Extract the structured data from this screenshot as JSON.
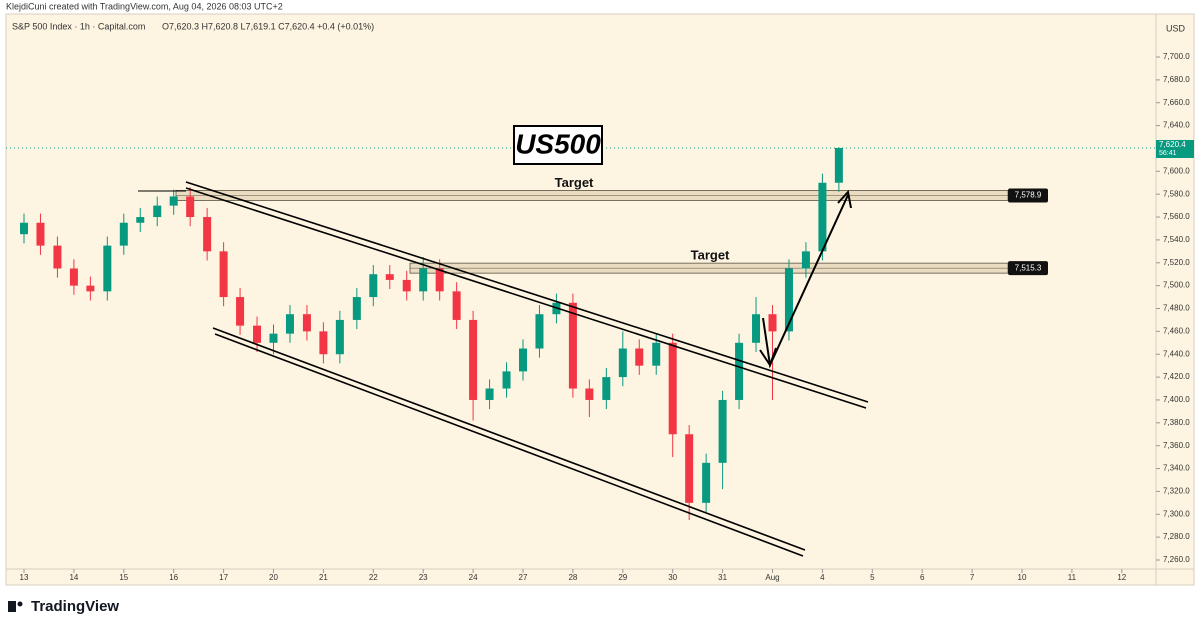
{
  "chart_data": {
    "type": "candlestick",
    "header": "KlejdiCuni created with TradingView.com, Aug 04, 2026 08:03 UTC+2",
    "subtitle": "S&P 500 Index · 1h · Capital.com",
    "ohlc_text": "O7,620.3 H7,620.8 L7,619.1 C7,620.4 +0.4 (+0.01%)",
    "title": "US500",
    "currency": "USD",
    "footer": "TradingView",
    "up_color": "#089981",
    "down_color": "#f23645",
    "last_price": 7620.4,
    "last_price_label": "7,620.4",
    "countdown": "56:41",
    "zones": [
      {
        "label": "Target",
        "value": 7578.9,
        "value_label": "7,578.9"
      },
      {
        "label": "Target",
        "value": 7515.3,
        "value_label": "7,515.3"
      }
    ],
    "xlim": [
      -0.3,
      22.3
    ],
    "xticks": [
      {
        "value": 0,
        "label": "13"
      },
      {
        "value": 1,
        "label": "14"
      },
      {
        "value": 2,
        "label": "15"
      },
      {
        "value": 3,
        "label": "16"
      },
      {
        "value": 4,
        "label": "17"
      },
      {
        "value": 5,
        "label": "20"
      },
      {
        "value": 6,
        "label": "21"
      },
      {
        "value": 7,
        "label": "22"
      },
      {
        "value": 8,
        "label": "23"
      },
      {
        "value": 9,
        "label": "24"
      },
      {
        "value": 10,
        "label": "27"
      },
      {
        "value": 11,
        "label": "28"
      },
      {
        "value": 12,
        "label": "29"
      },
      {
        "value": 13,
        "label": "30"
      },
      {
        "value": 14,
        "label": "31"
      },
      {
        "value": 15,
        "label": "Aug"
      },
      {
        "value": 16,
        "label": "4"
      },
      {
        "value": 17,
        "label": "5"
      },
      {
        "value": 18,
        "label": "6"
      },
      {
        "value": 19,
        "label": "7"
      },
      {
        "value": 20,
        "label": "10"
      },
      {
        "value": 21,
        "label": "11"
      },
      {
        "value": 22,
        "label": "12"
      }
    ],
    "ylim": [
      7240,
      7720
    ],
    "yticks": [
      {
        "value": 7260,
        "label": "7,260.0"
      },
      {
        "value": 7280,
        "label": "7,280.0"
      },
      {
        "value": 7300,
        "label": "7,300.0"
      },
      {
        "value": 7320,
        "label": "7,320.0"
      },
      {
        "value": 7340,
        "label": "7,340.0"
      },
      {
        "value": 7360,
        "label": "7,360.0"
      },
      {
        "value": 7380,
        "label": "7,380.0"
      },
      {
        "value": 7400,
        "label": "7,400.0"
      },
      {
        "value": 7420,
        "label": "7,420.0"
      },
      {
        "value": 7440,
        "label": "7,440.0"
      },
      {
        "value": 7460,
        "label": "7,460.0"
      },
      {
        "value": 7480,
        "label": "7,480.0"
      },
      {
        "value": 7500,
        "label": "7,500.0"
      },
      {
        "value": 7520,
        "label": "7,520.0"
      },
      {
        "value": 7540,
        "label": "7,540.0"
      },
      {
        "value": 7560,
        "label": "7,560.0"
      },
      {
        "value": 7580,
        "label": "7,580.0"
      },
      {
        "value": 7600,
        "label": "7,600.0"
      },
      {
        "value": 7620,
        "label": "7,620.0"
      },
      {
        "value": 7640,
        "label": "7,640.0"
      },
      {
        "value": 7660,
        "label": "7,660.0"
      },
      {
        "value": 7680,
        "label": "7,680.0"
      },
      {
        "value": 7700,
        "label": "7,700.0"
      }
    ],
    "x": [
      0,
      0.33,
      0.67,
      1,
      1.33,
      1.67,
      2,
      2.33,
      2.67,
      3,
      3.33,
      3.67,
      4,
      4.33,
      4.67,
      5,
      5.33,
      5.67,
      6,
      6.33,
      6.67,
      7,
      7.33,
      7.67,
      8,
      8.33,
      8.67,
      9,
      9.33,
      9.67,
      10,
      10.33,
      10.67,
      11,
      11.33,
      11.67,
      12,
      12.33,
      12.67,
      13,
      13.33,
      13.67,
      14,
      14.33,
      14.67,
      15,
      15.33,
      15.67,
      16,
      16.33
    ],
    "open": [
      7545,
      7555,
      7535,
      7515,
      7500,
      7495,
      7535,
      7555,
      7560,
      7570,
      7578,
      7560,
      7530,
      7490,
      7465,
      7450,
      7458,
      7475,
      7460,
      7440,
      7470,
      7490,
      7510,
      7505,
      7495,
      7515,
      7495,
      7470,
      7400,
      7410,
      7425,
      7445,
      7475,
      7485,
      7410,
      7400,
      7420,
      7445,
      7430,
      7450,
      7370,
      7310,
      7345,
      7400,
      7450,
      7475,
      7460,
      7515,
      7530,
      7590
    ],
    "high": [
      7563,
      7563,
      7543,
      7523,
      7508,
      7543,
      7563,
      7568,
      7578,
      7584,
      7586,
      7568,
      7538,
      7498,
      7473,
      7466,
      7483,
      7483,
      7468,
      7478,
      7498,
      7518,
      7518,
      7513,
      7525,
      7523,
      7503,
      7478,
      7418,
      7433,
      7453,
      7483,
      7493,
      7493,
      7418,
      7428,
      7460,
      7453,
      7458,
      7458,
      7378,
      7353,
      7408,
      7458,
      7490,
      7483,
      7523,
      7538,
      7598,
      7621
    ],
    "low": [
      7537,
      7527,
      7507,
      7492,
      7487,
      7487,
      7527,
      7547,
      7552,
      7562,
      7552,
      7522,
      7482,
      7457,
      7442,
      7440,
      7450,
      7452,
      7432,
      7432,
      7462,
      7482,
      7497,
      7487,
      7487,
      7487,
      7462,
      7382,
      7392,
      7402,
      7417,
      7437,
      7467,
      7402,
      7385,
      7392,
      7412,
      7422,
      7422,
      7350,
      7295,
      7302,
      7322,
      7392,
      7442,
      7400,
      7452,
      7507,
      7522,
      7582
    ],
    "close": [
      7555,
      7535,
      7515,
      7500,
      7495,
      7535,
      7555,
      7560,
      7570,
      7578,
      7560,
      7530,
      7490,
      7465,
      7450,
      7458,
      7475,
      7460,
      7440,
      7470,
      7490,
      7510,
      7505,
      7495,
      7515,
      7495,
      7470,
      7400,
      7410,
      7425,
      7445,
      7475,
      7485,
      7410,
      7400,
      7420,
      7445,
      7430,
      7450,
      7370,
      7310,
      7345,
      7400,
      7450,
      7475,
      7460,
      7515,
      7530,
      7590,
      7620.4
    ]
  }
}
